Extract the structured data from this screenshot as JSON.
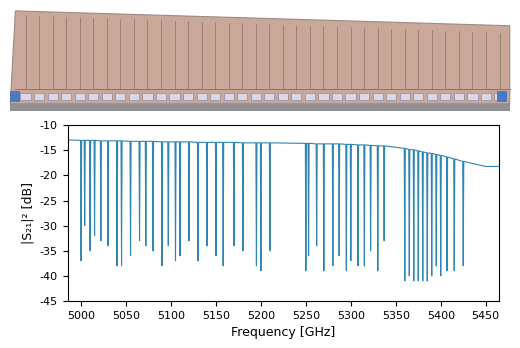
{
  "chart_data": {
    "type": "line",
    "x_label": "Frequency [GHz]",
    "y_label": "|S₂₁|² [dB]",
    "color": "#2f86b0",
    "grid": false,
    "xlim": [
      4985,
      5465
    ],
    "ylim": [
      -45,
      -10
    ],
    "xticks": [
      5000,
      5050,
      5100,
      5150,
      5200,
      5250,
      5300,
      5350,
      5400,
      5450
    ],
    "yticks": [
      -45,
      -40,
      -35,
      -30,
      -25,
      -20,
      -15,
      -10
    ],
    "x": [
      4985,
      4999.4,
      5000,
      5000.6,
      5003.4,
      5004,
      5004.6,
      5009.4,
      5010,
      5010.6,
      5014.4,
      5015,
      5015.6,
      5021.4,
      5022,
      5022.6,
      5029.4,
      5030,
      5030.6,
      5039.4,
      5040,
      5040.6,
      5044.4,
      5045,
      5045.6,
      5054.4,
      5055,
      5055.6,
      5064.4,
      5065,
      5065.6,
      5071.4,
      5072,
      5072.6,
      5079.4,
      5080,
      5080.6,
      5089.4,
      5090,
      5090.6,
      5096.4,
      5097,
      5097.6,
      5104.4,
      5105,
      5105.6,
      5109.4,
      5110,
      5110.6,
      5119.4,
      5120,
      5120.6,
      5129.4,
      5130,
      5130.6,
      5139.4,
      5140,
      5140.6,
      5149.4,
      5150,
      5150.6,
      5157.4,
      5158,
      5158.6,
      5169.4,
      5170,
      5170.6,
      5179.4,
      5180,
      5180.6,
      5194.4,
      5195,
      5195.6,
      5199.4,
      5200,
      5200.6,
      5209.4,
      5210,
      5210.6,
      5249.4,
      5250,
      5250.6,
      5252.4,
      5253,
      5253.6,
      5261.4,
      5262,
      5262.6,
      5269.4,
      5270,
      5270.6,
      5279.4,
      5280,
      5280.6,
      5286.4,
      5287,
      5287.6,
      5294.4,
      5295,
      5295.6,
      5299.4,
      5300,
      5300.6,
      5307.4,
      5308,
      5308.6,
      5314.4,
      5315,
      5315.6,
      5321.4,
      5322,
      5322.6,
      5329.4,
      5330,
      5330.6,
      5336.4,
      5337,
      5337.6,
      5359.4,
      5360,
      5360.6,
      5364.4,
      5365,
      5365.6,
      5369.4,
      5370,
      5370.6,
      5374.4,
      5375,
      5375.6,
      5379.4,
      5380,
      5380.6,
      5384.4,
      5385,
      5385.6,
      5389.4,
      5390,
      5390.6,
      5394.4,
      5395,
      5395.6,
      5399.4,
      5400,
      5400.6,
      5406.4,
      5407,
      5407.6,
      5414.4,
      5415,
      5415.6,
      5424.4,
      5425,
      5425.6,
      5440,
      5450,
      5465
    ],
    "values": [
      -12.9,
      -13.0,
      -37,
      -13.0,
      -13.0,
      -30,
      -13.0,
      -13.0,
      -35,
      -13.0,
      -13.0,
      -32,
      -13.0,
      -13.1,
      -33,
      -13.1,
      -13.1,
      -34,
      -13.1,
      -13.1,
      -38,
      -13.1,
      -13.1,
      -38,
      -13.1,
      -13.2,
      -36,
      -13.2,
      -13.2,
      -33,
      -13.2,
      -13.2,
      -34,
      -13.2,
      -13.2,
      -35,
      -13.2,
      -13.3,
      -38,
      -13.3,
      -13.3,
      -34,
      -13.3,
      -13.3,
      -37,
      -13.3,
      -13.3,
      -36,
      -13.3,
      -13.3,
      -33,
      -13.3,
      -13.4,
      -37,
      -13.4,
      -13.4,
      -34,
      -13.4,
      -13.4,
      -36,
      -13.4,
      -13.4,
      -38,
      -13.4,
      -13.4,
      -34,
      -13.4,
      -13.5,
      -35,
      -13.5,
      -13.5,
      -38,
      -13.5,
      -13.5,
      -39,
      -13.5,
      -13.5,
      -35,
      -13.5,
      -13.6,
      -39,
      -13.6,
      -13.6,
      -36,
      -13.6,
      -13.7,
      -34,
      -13.7,
      -13.7,
      -39,
      -13.7,
      -13.7,
      -38,
      -13.7,
      -13.7,
      -36,
      -13.7,
      -13.8,
      -39,
      -13.8,
      -13.8,
      -37,
      -13.8,
      -13.9,
      -38,
      -13.9,
      -13.9,
      -38,
      -13.9,
      -14.0,
      -35,
      -14.0,
      -14.1,
      -39,
      -14.1,
      -14.1,
      -33,
      -14.1,
      -14.6,
      -41,
      -14.6,
      -14.8,
      -40,
      -14.8,
      -14.9,
      -41,
      -14.9,
      -15.1,
      -41,
      -15.1,
      -15.3,
      -41,
      -15.3,
      -15.5,
      -41,
      -15.5,
      -15.6,
      -40,
      -15.6,
      -15.8,
      -38,
      -15.8,
      -16.0,
      -40,
      -16.0,
      -16.3,
      -39,
      -16.3,
      -16.7,
      -39,
      -16.7,
      -17.2,
      -38,
      -17.2,
      -17.8,
      -18.2,
      -18.2
    ]
  }
}
